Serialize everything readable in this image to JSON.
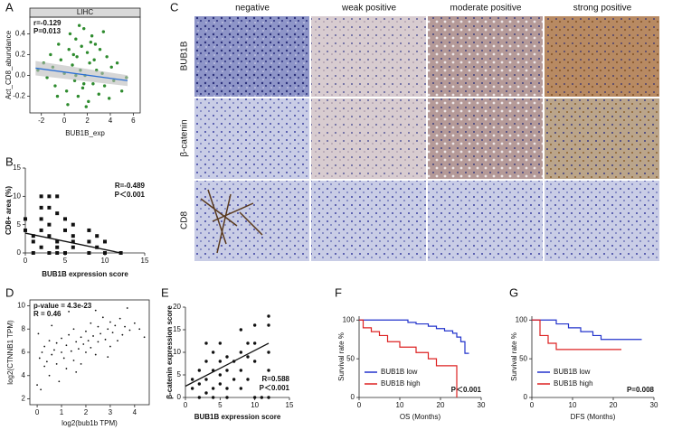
{
  "panel_c": {
    "label": "C",
    "columns": [
      "negative",
      "weak positive",
      "moderate positive",
      "strong positive"
    ],
    "rows": [
      "BUB1B",
      "β-catenin",
      "CD8"
    ]
  },
  "chart_data": [
    {
      "type": "scatter",
      "label": "A",
      "title": "LIHC",
      "x_label": "BUB1B_exp",
      "y_label": "Act_CD8_abundance",
      "annotations": [
        "r=-0.129",
        "P=0.013"
      ],
      "frame": true,
      "xlim": [
        -3,
        6.6
      ],
      "ylim": [
        -0.36,
        0.56
      ],
      "xticks": [
        -2,
        0,
        2,
        4,
        6
      ],
      "yticks": [
        -0.2,
        {
          "value": 0,
          "label": "0.0"
        },
        0.2,
        0.4
      ],
      "series": [
        {
          "color": "#2e8b2e",
          "marker": "circle",
          "x": [
            -2.3,
            -1.8,
            -1.5,
            -1.2,
            -1.0,
            -0.8,
            -0.5,
            -0.3,
            0.0,
            0.2,
            0.4,
            0.5,
            0.7,
            0.9,
            1.0,
            1.1,
            1.2,
            1.4,
            1.5,
            1.6,
            1.7,
            1.8,
            2.0,
            2.1,
            2.2,
            2.3,
            2.5,
            2.6,
            2.8,
            3.0,
            3.1,
            3.3,
            3.5,
            3.7,
            3.9,
            4.1,
            4.3,
            4.6,
            5.0,
            5.4,
            0.3,
            1.3,
            1.9,
            2.4,
            0.8,
            1.7,
            2.7,
            -0.6,
            3.4,
            1.0
          ],
          "values": [
            0.05,
            0.12,
            -0.02,
            0.2,
            0.08,
            -0.1,
            0.3,
            0.15,
            0.02,
            -0.15,
            0.25,
            0.4,
            0.1,
            -0.05,
            0.35,
            0.18,
            -0.2,
            0.05,
            0.28,
            -0.12,
            0.45,
            0.0,
            0.22,
            -0.25,
            0.12,
            0.32,
            -0.08,
            0.15,
            0.05,
            -0.18,
            0.25,
            0.02,
            -0.1,
            0.18,
            -0.22,
            0.08,
            -0.05,
            0.12,
            -0.15,
            -0.02,
            -0.28,
            0.48,
            -0.3,
            0.38,
            0.2,
            -0.08,
            0.3,
            -0.2,
            0.42,
            0.0
          ]
        }
      ],
      "fit": {
        "color": "#2a6fd6",
        "x": [
          -2.5,
          5.5
        ],
        "values": [
          0.07,
          -0.05
        ]
      }
    },
    {
      "type": "scatter",
      "label": "B",
      "x_label": "BUB1B expression score",
      "y_label": "CD8+ area (%)",
      "annotations": [
        "R=-0.489",
        "P＜0.001"
      ],
      "xlim": [
        0,
        15
      ],
      "ylim": [
        0,
        15
      ],
      "xticks": [
        0,
        5,
        10,
        15
      ],
      "yticks": [
        0,
        5,
        10,
        15
      ],
      "series": [
        {
          "color": "#111111",
          "marker": "square",
          "x": [
            0,
            0,
            1,
            1,
            1,
            2,
            2,
            2,
            2,
            3,
            3,
            3,
            3,
            4,
            4,
            4,
            4,
            5,
            5,
            5,
            6,
            6,
            6,
            6,
            8,
            8,
            8,
            9,
            9,
            10,
            10,
            12,
            2,
            3,
            4
          ],
          "values": [
            4,
            6,
            0,
            2,
            3,
            1,
            4,
            6,
            8,
            10,
            0,
            3,
            5,
            2,
            7,
            10,
            1,
            0,
            4,
            6,
            1,
            2,
            3,
            5,
            0,
            2,
            4,
            1,
            3,
            0,
            2,
            0,
            10,
            8,
            0
          ]
        }
      ],
      "fit": {
        "color": "#111111",
        "x": [
          0,
          12
        ],
        "values": [
          3.5,
          0
        ]
      }
    },
    {
      "type": "scatter",
      "label": "D",
      "x_label": "log2(bub1b TPM)",
      "y_label": "log2(CTNNB1 TPM)",
      "annotations": [
        "p-value = 4.3e-23",
        "R = 0.46"
      ],
      "frame": true,
      "xlim": [
        -0.3,
        4.6
      ],
      "ylim": [
        1.5,
        10.5
      ],
      "xticks": [
        0,
        1,
        2,
        3,
        4
      ],
      "yticks": [
        2,
        4,
        6,
        8,
        10
      ],
      "series": [
        {
          "color": "#111111",
          "marker": "dot",
          "x": [
            0.1,
            0.2,
            0.3,
            0.3,
            0.4,
            0.5,
            0.5,
            0.6,
            0.7,
            0.8,
            0.8,
            0.9,
            1.0,
            1.0,
            1.1,
            1.2,
            1.2,
            1.3,
            1.4,
            1.5,
            1.5,
            1.6,
            1.7,
            1.8,
            1.8,
            1.9,
            2.0,
            2.0,
            2.1,
            2.2,
            2.2,
            2.3,
            2.4,
            2.5,
            2.5,
            2.6,
            2.7,
            2.8,
            2.9,
            3.0,
            3.0,
            3.1,
            3.2,
            3.3,
            3.4,
            3.5,
            3.6,
            3.8,
            4.0,
            4.2,
            0.0,
            0.05,
            0.15,
            1.3,
            2.4,
            0.6,
            1.6,
            2.9,
            3.7,
            4.4
          ],
          "values": [
            5.5,
            6.0,
            4.8,
            6.5,
            5.2,
            7.0,
            4.0,
            5.8,
            6.2,
            5.0,
            6.8,
            3.5,
            6.0,
            7.2,
            5.5,
            6.6,
            4.6,
            7.5,
            6.1,
            5.3,
            8.0,
            6.9,
            6.3,
            7.3,
            5.0,
            6.7,
            7.8,
            6.0,
            7.0,
            8.5,
            6.4,
            7.4,
            5.8,
            8.2,
            6.9,
            7.6,
            9.0,
            7.1,
            8.0,
            6.5,
            8.6,
            7.7,
            8.3,
            7.0,
            8.9,
            7.5,
            8.2,
            7.9,
            8.5,
            8.0,
            3.2,
            7.6,
            2.8,
            9.5,
            9.6,
            8.3,
            4.3,
            5.6,
            9.8,
            7.3
          ]
        }
      ]
    },
    {
      "type": "scatter",
      "label": "E",
      "x_label": "BUB1B expression score",
      "y_label": "β-catenin expression score",
      "annotations": [
        "R=0.588",
        "P＜0.001"
      ],
      "xlim": [
        0,
        15
      ],
      "ylim": [
        0,
        20
      ],
      "xticks": [
        0,
        5,
        10,
        15
      ],
      "yticks": [
        0,
        5,
        10,
        15,
        20
      ],
      "series": [
        {
          "color": "#111111",
          "marker": "circle",
          "x": [
            1,
            1,
            2,
            2,
            2,
            3,
            3,
            3,
            4,
            4,
            4,
            4,
            5,
            5,
            5,
            5,
            6,
            6,
            6,
            6,
            7,
            7,
            8,
            8,
            8,
            8,
            9,
            9,
            9,
            10,
            10,
            10,
            10,
            12,
            12,
            12,
            12,
            11,
            12,
            3
          ],
          "values": [
            2,
            4,
            0,
            3,
            6,
            1,
            4,
            8,
            2,
            6,
            10,
            0,
            3,
            5,
            8,
            12,
            2,
            6,
            9,
            0,
            4,
            8,
            6,
            10,
            15,
            2,
            4,
            9,
            12,
            8,
            16,
            0,
            12,
            6,
            10,
            16,
            18,
            0,
            0,
            12
          ]
        }
      ],
      "fit": {
        "color": "#111111",
        "x": [
          0,
          12
        ],
        "values": [
          2.5,
          12
        ]
      }
    },
    {
      "type": "step",
      "label": "F",
      "x_label": "OS (Months)",
      "y_label": "Survival rate %",
      "annotations": [
        "P＜0.001"
      ],
      "legend": "lower left",
      "xlim": [
        0,
        30
      ],
      "ylim": [
        0,
        105
      ],
      "xticks": [
        0,
        10,
        20,
        30
      ],
      "yticks": [
        0,
        50,
        100
      ],
      "series": [
        {
          "name": "BUB1B low",
          "color": "#2233cc",
          "x": [
            0,
            12,
            14,
            17,
            19,
            21,
            23,
            24,
            25,
            26,
            27
          ],
          "values": [
            100,
            97,
            95,
            92,
            89,
            86,
            83,
            78,
            72,
            57,
            57
          ]
        },
        {
          "name": "BUB1B high",
          "color": "#dd2222",
          "x": [
            0,
            1,
            3,
            5,
            7,
            10,
            14,
            17,
            19,
            24,
            24
          ],
          "values": [
            100,
            90,
            85,
            80,
            72,
            65,
            58,
            50,
            41,
            41,
            0
          ]
        }
      ]
    },
    {
      "type": "step",
      "label": "G",
      "x_label": "DFS (Months)",
      "y_label": "Survival rate %",
      "annotations": [
        "P=0.008"
      ],
      "legend": "lower left",
      "xlim": [
        0,
        30
      ],
      "ylim": [
        0,
        105
      ],
      "xticks": [
        0,
        10,
        20,
        30
      ],
      "yticks": [
        0,
        50,
        100
      ],
      "series": [
        {
          "name": "BUB1B low",
          "color": "#2233cc",
          "x": [
            0,
            6,
            9,
            12,
            15,
            17,
            27
          ],
          "values": [
            100,
            95,
            90,
            85,
            80,
            75,
            75
          ]
        },
        {
          "name": "BUB1B high",
          "color": "#dd2222",
          "x": [
            0,
            2,
            4,
            6,
            22
          ],
          "values": [
            100,
            80,
            70,
            62,
            62
          ]
        }
      ]
    }
  ]
}
